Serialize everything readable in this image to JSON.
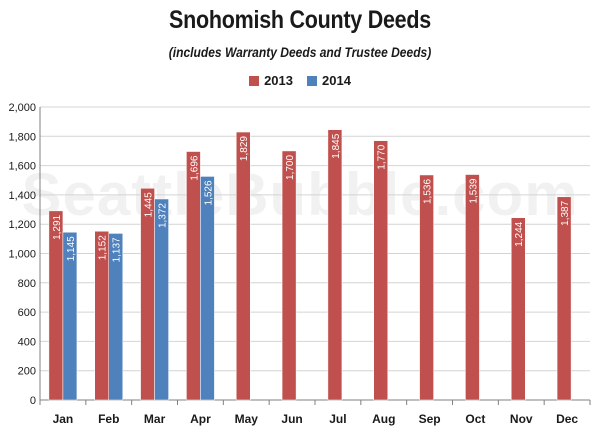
{
  "chart_data": {
    "type": "bar",
    "title": "Snohomish County Deeds",
    "subtitle": "(includes Warranty Deeds and Trustee Deeds)",
    "categories": [
      "Jan",
      "Feb",
      "Mar",
      "Apr",
      "May",
      "Jun",
      "Jul",
      "Aug",
      "Sep",
      "Oct",
      "Nov",
      "Dec"
    ],
    "series": [
      {
        "name": "2013",
        "color": "#c0504d",
        "values": [
          1291,
          1152,
          1445,
          1696,
          1829,
          1700,
          1845,
          1770,
          1536,
          1539,
          1244,
          1387
        ],
        "labels": [
          "1,291",
          "1,152",
          "1,445",
          "1,696",
          "1,829",
          "1,700",
          "1,845",
          "1,770",
          "1,536",
          "1,539",
          "1,244",
          "1,387"
        ]
      },
      {
        "name": "2014",
        "color": "#4f81bd",
        "values": [
          1145,
          1137,
          1372,
          1526,
          null,
          null,
          null,
          null,
          null,
          null,
          null,
          null
        ],
        "labels": [
          "1,145",
          "1,137",
          "1,372",
          "1,526",
          "",
          "",
          "",
          "",
          "",
          "",
          "",
          ""
        ]
      }
    ],
    "yticks": [
      "0",
      "200",
      "400",
      "600",
      "800",
      "1,000",
      "1,200",
      "1,400",
      "1,600",
      "1,800",
      "2,000"
    ],
    "ylim": [
      0,
      2000
    ],
    "grid": true,
    "legend": "top-center"
  },
  "watermark": "SeattleBubble.com"
}
